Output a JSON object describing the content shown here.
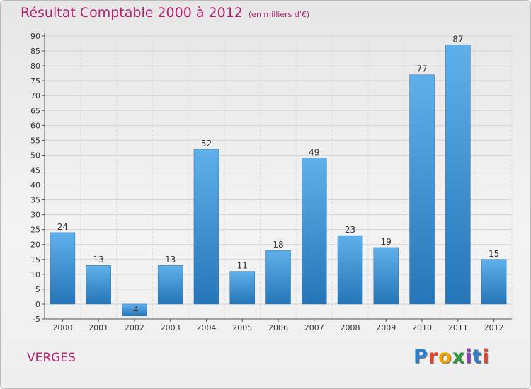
{
  "title": "Résultat Comptable 2000 à 2012",
  "subtitle": "(en milliers d'€)",
  "commune": "VERGES",
  "logo": {
    "text": "Proxiti",
    "colors": [
      "#2f7fc8",
      "#e2462f",
      "#f0a500",
      "#2f9a3a",
      "#8a3fb8",
      "#2f7fc8",
      "#e2462f"
    ]
  },
  "chart_data": {
    "type": "bar",
    "categories": [
      "2000",
      "2001",
      "2002",
      "2003",
      "2004",
      "2005",
      "2006",
      "2007",
      "2008",
      "2009",
      "2010",
      "2011",
      "2012"
    ],
    "values": [
      24,
      13,
      -4,
      13,
      52,
      11,
      18,
      49,
      23,
      19,
      77,
      87,
      15
    ],
    "data_labels": [
      "24",
      "13",
      "-4",
      "13",
      "52",
      "11",
      "18",
      "49",
      "23",
      "19",
      "77",
      "87",
      "15"
    ],
    "ylim": [
      -5,
      90
    ],
    "yticks": [
      -5,
      0,
      5,
      10,
      15,
      20,
      25,
      30,
      35,
      40,
      45,
      50,
      55,
      60,
      65,
      70,
      75,
      80,
      85,
      90
    ],
    "grid": true,
    "bar_color": "#3a8fd4"
  }
}
